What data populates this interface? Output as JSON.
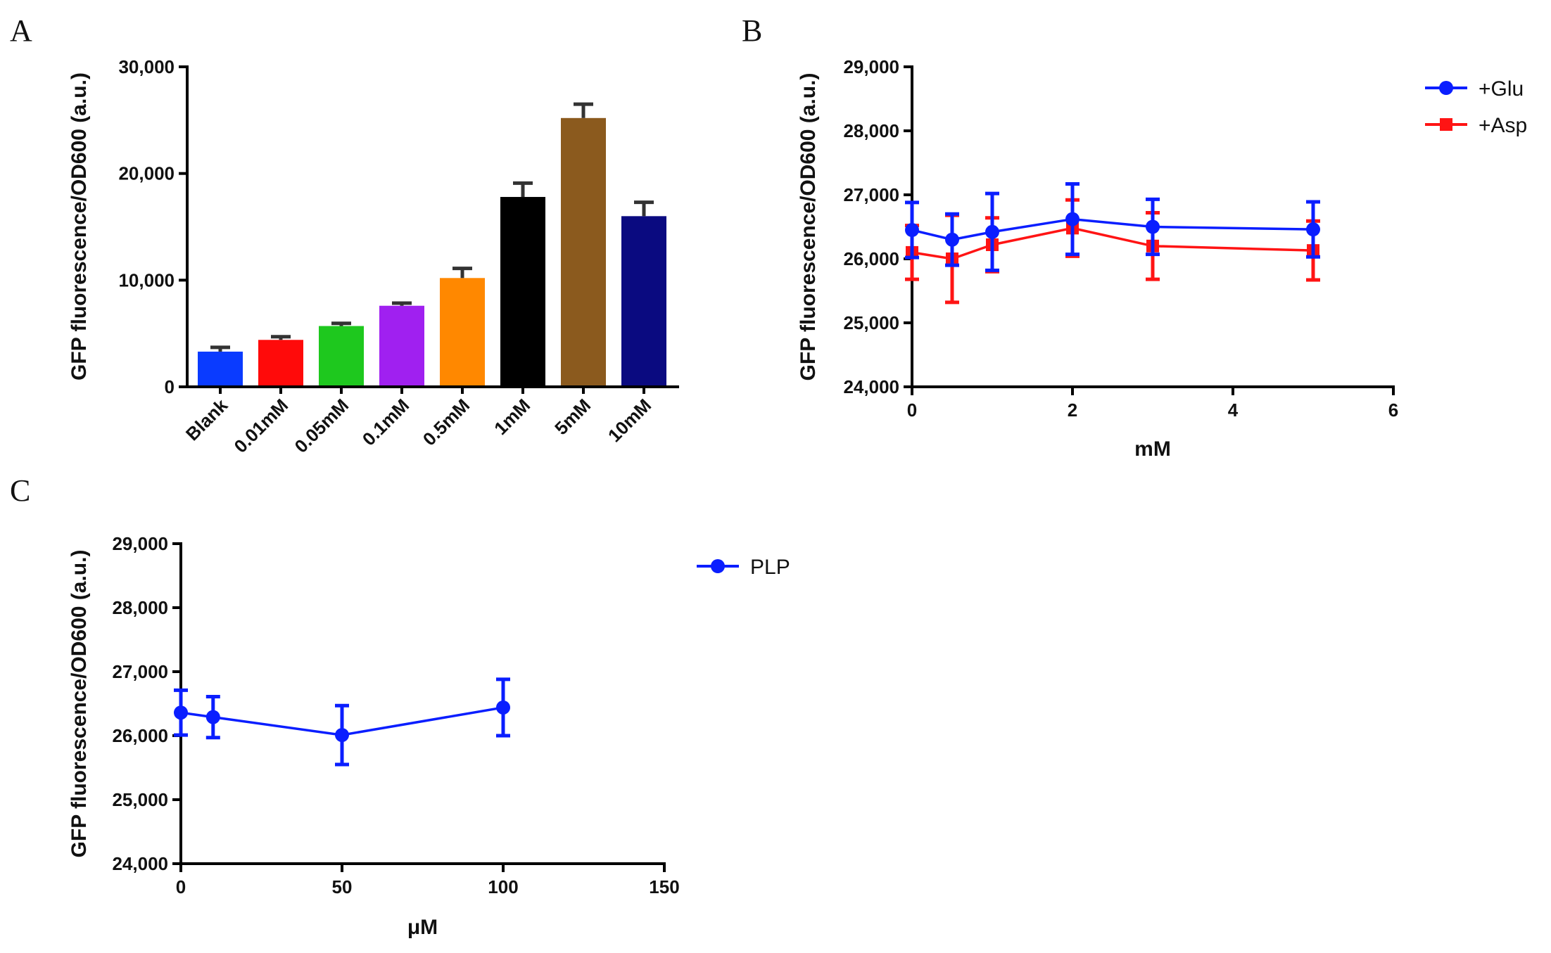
{
  "chart_data": [
    {
      "panel": "A",
      "type": "bar",
      "title": "",
      "xlabel": "",
      "ylabel": "GFP fluorescence/OD600 (a.u.)",
      "ylim": [
        0,
        30000
      ],
      "yticks": [
        0,
        10000,
        20000,
        30000
      ],
      "ytick_labels": [
        "0",
        "10,000",
        "20,000",
        "30,000"
      ],
      "categories": [
        "Blank",
        "0.01mM",
        "0.05mM",
        "0.1mM",
        "0.5mM",
        "1mM",
        "5mM",
        "10mM"
      ],
      "values": [
        3300,
        4400,
        5700,
        7600,
        10200,
        17800,
        25200,
        16000
      ],
      "errors": [
        400,
        300,
        250,
        250,
        900,
        1300,
        1300,
        1300
      ],
      "colors": [
        "#0a3bff",
        "#ff0a0a",
        "#1ec81e",
        "#a020f0",
        "#ff8800",
        "#000000",
        "#8b5a1e",
        "#0a0a80"
      ],
      "error_color": "#333333"
    },
    {
      "panel": "B",
      "type": "line",
      "title": "",
      "xlabel": "mM",
      "ylabel": "GFP fluorescence/OD600 (a.u.)",
      "xlim": [
        0,
        6
      ],
      "ylim": [
        24000,
        29000
      ],
      "xticks": [
        0,
        2,
        4,
        6
      ],
      "xtick_labels": [
        "0",
        "2",
        "4",
        "6"
      ],
      "yticks": [
        24000,
        25000,
        26000,
        27000,
        28000,
        29000
      ],
      "ytick_labels": [
        "24,000",
        "25,000",
        "26,000",
        "27,000",
        "28,000",
        "29,000"
      ],
      "legend_position": "top-right",
      "series": [
        {
          "name": "+Glu",
          "color": "#0a1eff",
          "marker": "circle",
          "x": [
            0,
            0.5,
            1,
            2,
            3,
            5
          ],
          "values": [
            26450,
            26300,
            26420,
            26620,
            26500,
            26460
          ],
          "errors": [
            430,
            400,
            600,
            550,
            430,
            430
          ]
        },
        {
          "name": "+Asp",
          "color": "#ff1414",
          "marker": "square",
          "x": [
            0,
            0.5,
            1,
            2,
            3,
            5
          ],
          "values": [
            26100,
            26000,
            26220,
            26480,
            26200,
            26130
          ],
          "errors": [
            420,
            680,
            420,
            440,
            520,
            460
          ]
        }
      ]
    },
    {
      "panel": "C",
      "type": "line",
      "title": "",
      "xlabel": "μM",
      "ylabel": "GFP fluorescence/OD600 (a.u.)",
      "xlim": [
        0,
        150
      ],
      "ylim": [
        24000,
        29000
      ],
      "xticks": [
        0,
        50,
        100,
        150
      ],
      "xtick_labels": [
        "0",
        "50",
        "100",
        "150"
      ],
      "yticks": [
        24000,
        25000,
        26000,
        27000,
        28000,
        29000
      ],
      "ytick_labels": [
        "24,000",
        "25,000",
        "26,000",
        "27,000",
        "28,000",
        "29,000"
      ],
      "legend_position": "right",
      "series": [
        {
          "name": "PLP",
          "color": "#0a1eff",
          "marker": "circle",
          "x": [
            0,
            10,
            50,
            100
          ],
          "values": [
            26360,
            26290,
            26010,
            26440
          ],
          "errors": [
            350,
            320,
            460,
            440
          ]
        }
      ]
    }
  ]
}
